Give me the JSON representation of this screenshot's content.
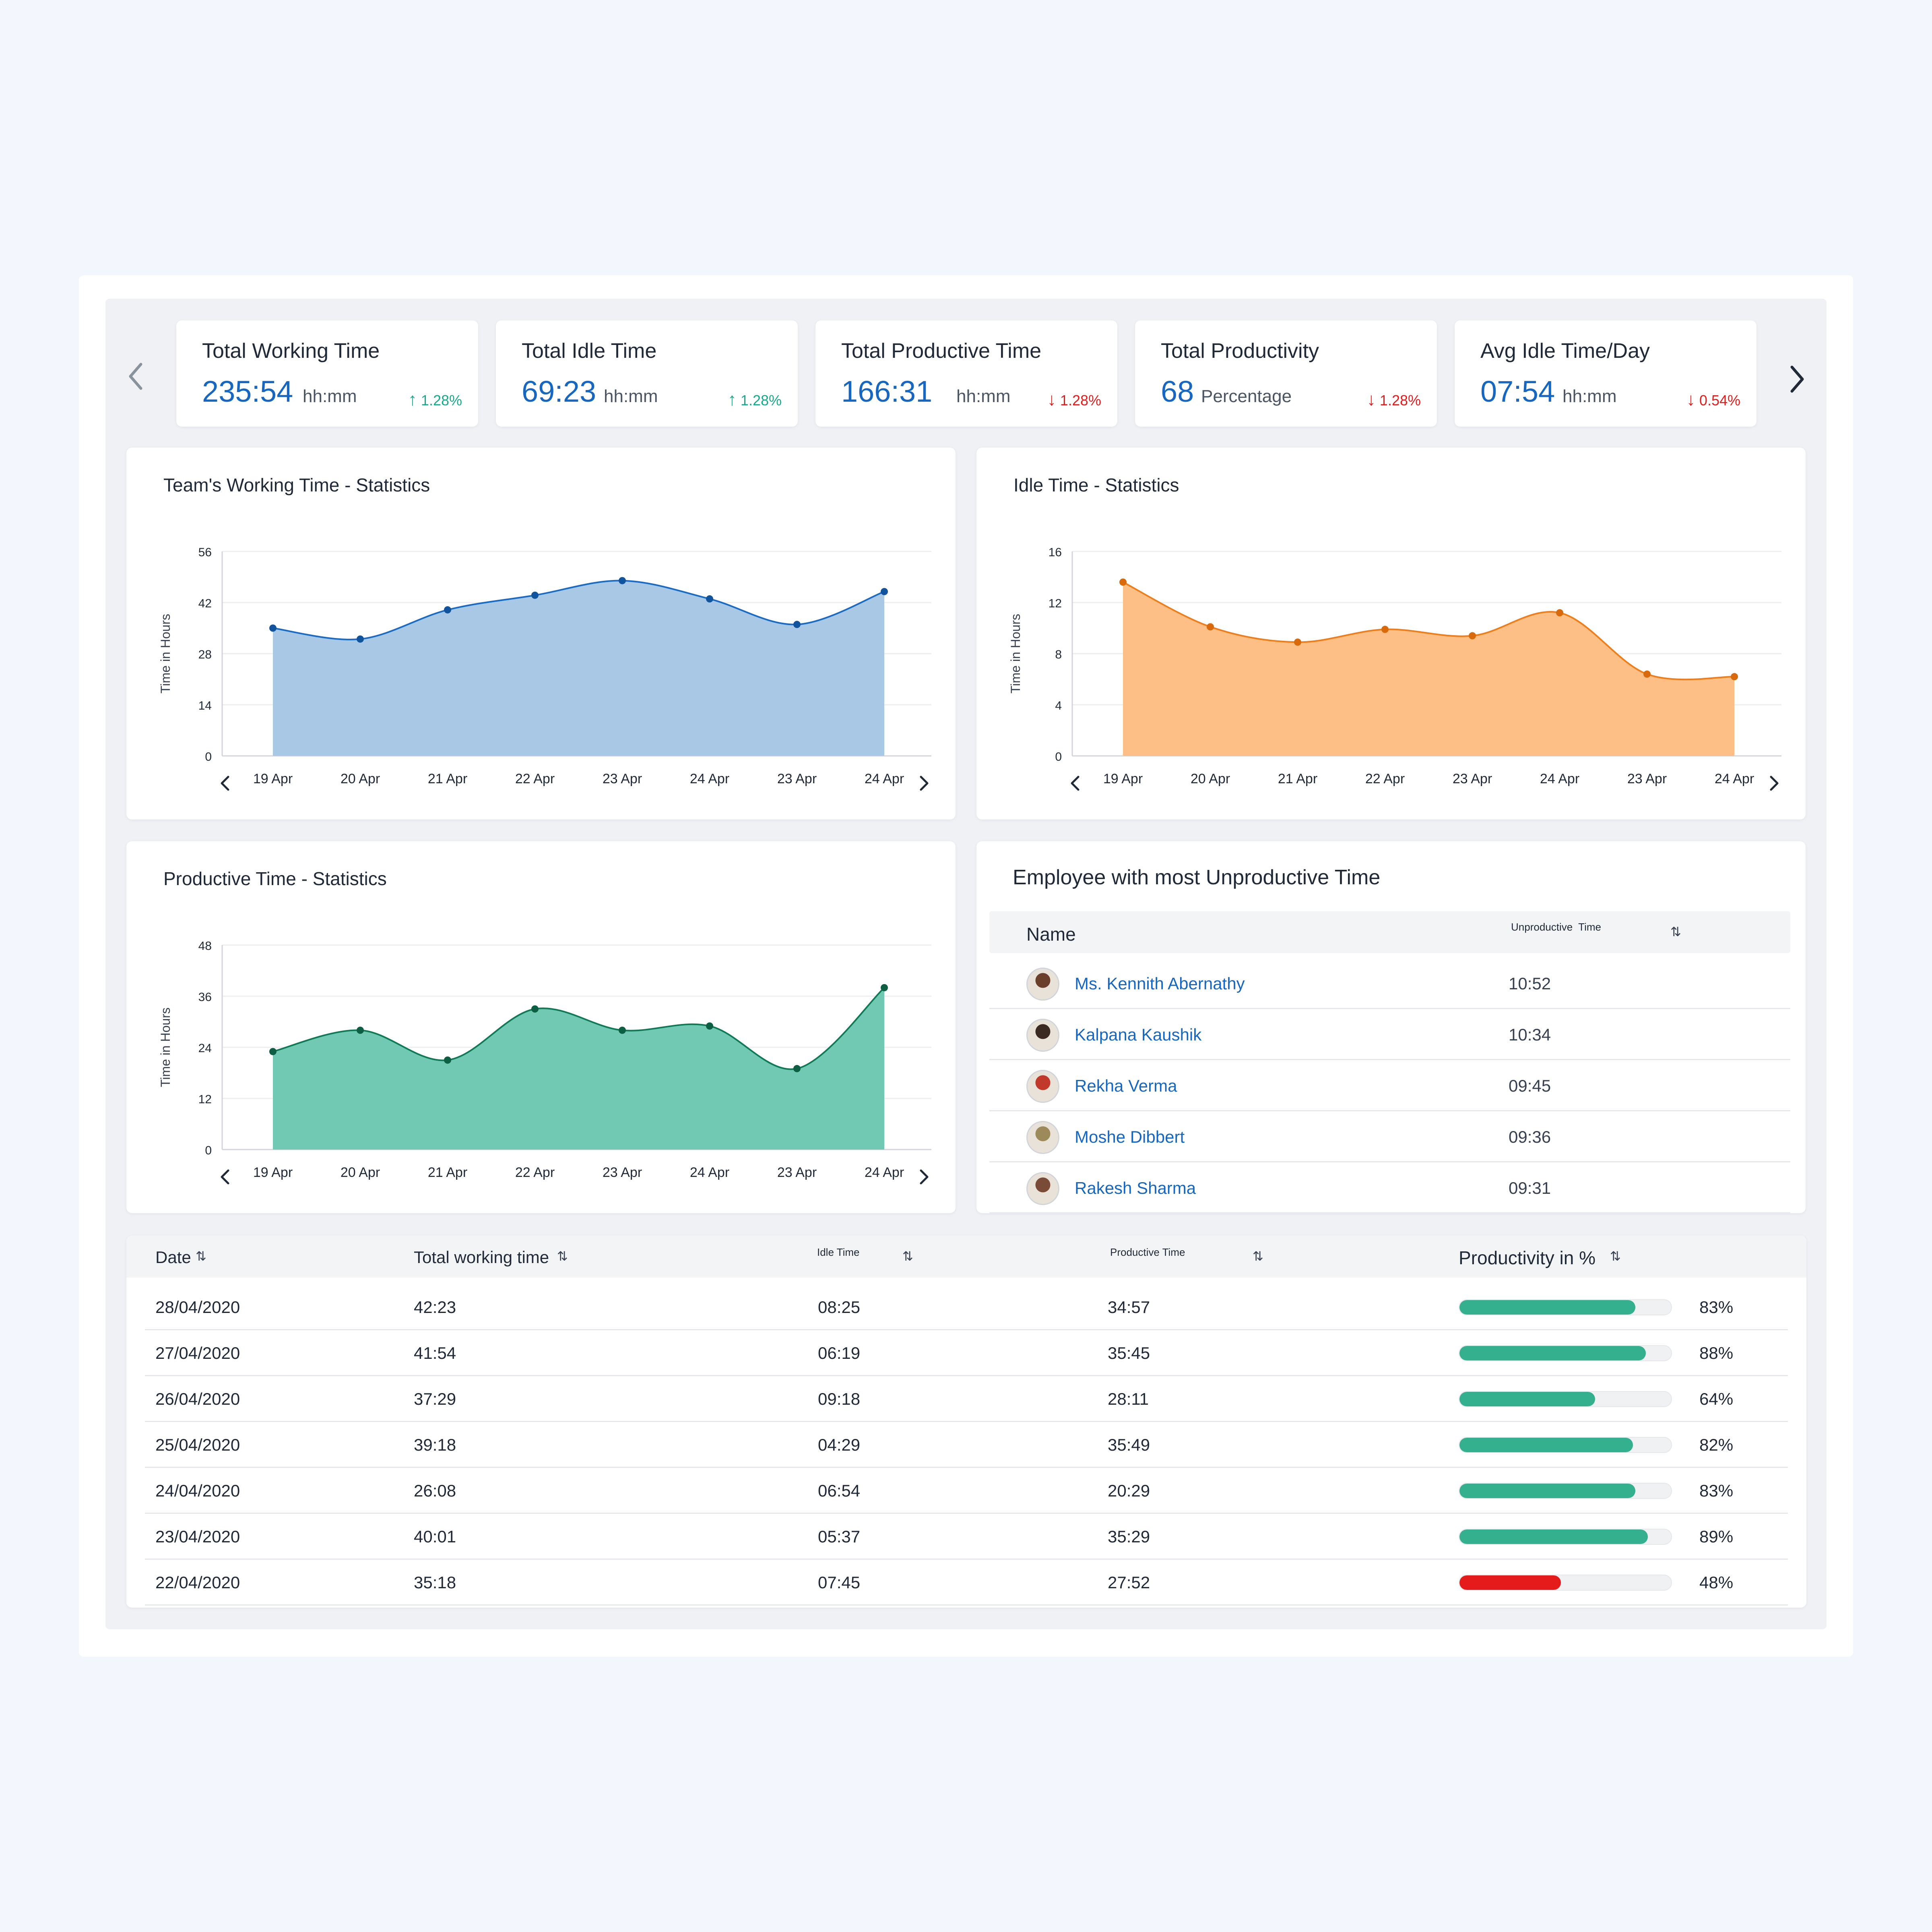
{
  "stats": [
    {
      "title": "Total Working Time",
      "value": "235:54",
      "unit": "hh:mm",
      "trend": "1.28%",
      "direction": "up"
    },
    {
      "title": "Total Idle Time",
      "value": "69:23",
      "unit": "hh:mm",
      "trend": "1.28%",
      "direction": "up"
    },
    {
      "title": "Total Productive Time",
      "value": "166:31",
      "unit": "hh:mm",
      "trend": "1.28%",
      "direction": "down"
    },
    {
      "title": "Total Productivity",
      "value": "68",
      "unit": "Percentage",
      "trend": "1.28%",
      "direction": "down"
    },
    {
      "title": "Avg Idle Time/Day",
      "value": "07:54",
      "unit": "hh:mm",
      "trend": "0.54%",
      "direction": "down"
    }
  ],
  "colors": {
    "accent_blue": "#1767c0",
    "trend_up": "#1aa98b",
    "trend_down": "#e11d1d",
    "working_line": "#1a6bc4",
    "working_fill": "#a9c8e6",
    "idle_line": "#ef7d1a",
    "idle_fill": "#fdbf85",
    "productive_line": "#0f7a55",
    "productive_fill": "#71c9b3",
    "bar_good": "#34b08f",
    "bar_bad": "#e51b1b"
  },
  "chart_data": [
    {
      "type": "area",
      "title": "Team's Working Time - Statistics",
      "ylabel": "Time in Hours",
      "categories": [
        "19 Apr",
        "20 Apr",
        "21 Apr",
        "22 Apr",
        "23 Apr",
        "24 Apr",
        "23 Apr",
        "24 Apr"
      ],
      "values": [
        35,
        32,
        40,
        44,
        48,
        43,
        36,
        45
      ],
      "yticks": [
        0,
        14,
        28,
        42,
        56
      ],
      "ylim": [
        0,
        56
      ],
      "grid": true
    },
    {
      "type": "area",
      "title": "Idle Time - Statistics",
      "ylabel": "Time in Hours",
      "categories": [
        "19 Apr",
        "20 Apr",
        "21 Apr",
        "22 Apr",
        "23 Apr",
        "24 Apr",
        "23 Apr",
        "24 Apr"
      ],
      "values": [
        13.6,
        10.1,
        8.9,
        9.9,
        9.4,
        11.2,
        6.4,
        6.2
      ],
      "yticks": [
        0,
        4,
        8,
        12,
        16
      ],
      "ylim": [
        0,
        16
      ],
      "grid": true
    },
    {
      "type": "area",
      "title": "Productive Time - Statistics",
      "ylabel": "Time in Hours",
      "categories": [
        "19 Apr",
        "20 Apr",
        "21 Apr",
        "22 Apr",
        "23 Apr",
        "24 Apr",
        "23 Apr",
        "24 Apr"
      ],
      "values": [
        23,
        28,
        21,
        33,
        28,
        29,
        19,
        38
      ],
      "yticks": [
        0,
        12,
        24,
        36,
        48
      ],
      "ylim": [
        0,
        48
      ],
      "grid": true
    }
  ],
  "employees": {
    "title": "Employee with most Unproductive Time",
    "col_name": "Name",
    "col_time": "Unproductive  Time",
    "rows": [
      {
        "name": "Ms. Kennith Abernathy",
        "time": "10:52",
        "avatar_color": "#6b3f2a"
      },
      {
        "name": "Kalpana Kaushik",
        "time": "10:34",
        "avatar_color": "#3b2a22"
      },
      {
        "name": "Rekha Verma",
        "time": "09:45",
        "avatar_color": "#c0392b"
      },
      {
        "name": "Moshe Dibbert",
        "time": "09:36",
        "avatar_color": "#9c8a5a"
      },
      {
        "name": "Rakesh Sharma",
        "time": "09:31",
        "avatar_color": "#7a4b36"
      }
    ]
  },
  "table": {
    "headers": {
      "date": "Date",
      "working": "Total working time",
      "idle": "Idle Time",
      "productive": "Productive Time",
      "productivity": "Productivity in %"
    },
    "rows": [
      {
        "date": "28/04/2020",
        "working": "42:23",
        "idle": "08:25",
        "productive": "34:57",
        "pct": 83,
        "pct_label": "83%"
      },
      {
        "date": "27/04/2020",
        "working": "41:54",
        "idle": "06:19",
        "productive": "35:45",
        "pct": 88,
        "pct_label": "88%"
      },
      {
        "date": "26/04/2020",
        "working": "37:29",
        "idle": "09:18",
        "productive": "28:11",
        "pct": 64,
        "pct_label": "64%"
      },
      {
        "date": "25/04/2020",
        "working": "39:18",
        "idle": "04:29",
        "productive": "35:49",
        "pct": 82,
        "pct_label": "82%"
      },
      {
        "date": "24/04/2020",
        "working": "26:08",
        "idle": "06:54",
        "productive": "20:29",
        "pct": 83,
        "pct_label": "83%"
      },
      {
        "date": "23/04/2020",
        "working": "40:01",
        "idle": "05:37",
        "productive": "35:29",
        "pct": 89,
        "pct_label": "89%"
      },
      {
        "date": "22/04/2020",
        "working": "35:18",
        "idle": "07:45",
        "productive": "27:52",
        "pct": 48,
        "pct_label": "48%"
      }
    ]
  }
}
